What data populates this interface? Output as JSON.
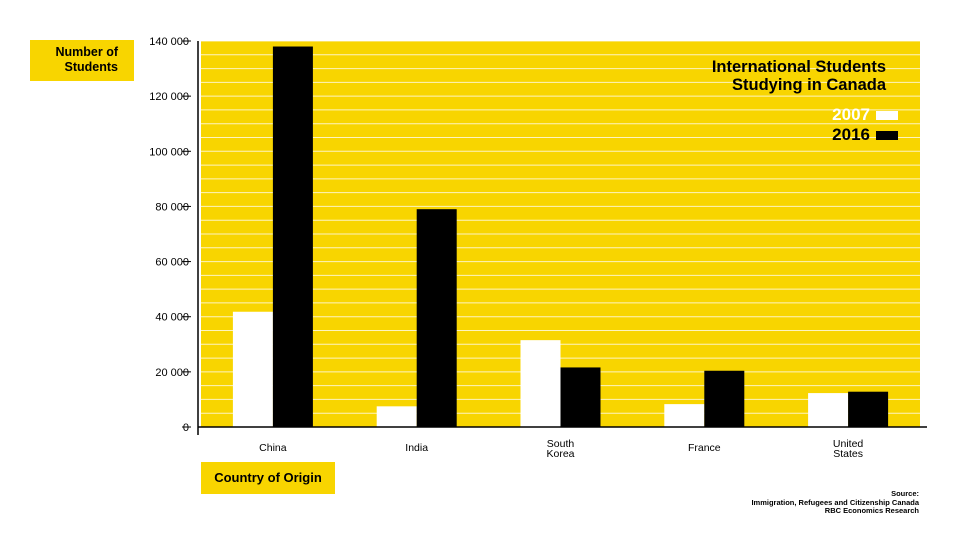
{
  "chart_data": {
    "type": "bar",
    "title": "International Students Studying in Canada",
    "title_lines": [
      "International Students",
      "Studying in Canada"
    ],
    "ylabel": "Number of Students",
    "ylabel_lines": [
      "Number of",
      "Students"
    ],
    "xlabel": "Country of Origin",
    "categories": [
      "China",
      "India",
      "South Korea",
      "France",
      "United States"
    ],
    "category_lines": [
      [
        "China"
      ],
      [
        "India"
      ],
      [
        "South",
        "Korea"
      ],
      [
        "France"
      ],
      [
        "United",
        "States"
      ]
    ],
    "series": [
      {
        "name": "2007",
        "color": "#ffffff",
        "values": [
          41800,
          7500,
          31500,
          8300,
          12300
        ]
      },
      {
        "name": "2016",
        "color": "#000000",
        "values": [
          138000,
          79000,
          21600,
          20400,
          12800
        ]
      }
    ],
    "ylim": [
      0,
      140000
    ],
    "yticks": [
      0,
      20000,
      40000,
      60000,
      80000,
      100000,
      120000,
      140000
    ],
    "ytick_labels": [
      "0",
      "20 000",
      "40 000",
      "60 000",
      "80 000",
      "100 000",
      "120 000",
      "140 000"
    ],
    "grid": true,
    "background_color": "#f8d500",
    "grid_color": "#ffffff",
    "legend_position": "top-right",
    "source_lines": [
      "Source:",
      "Immigration, Refugees and Citizenship Canada",
      "RBC Economics Research"
    ]
  }
}
